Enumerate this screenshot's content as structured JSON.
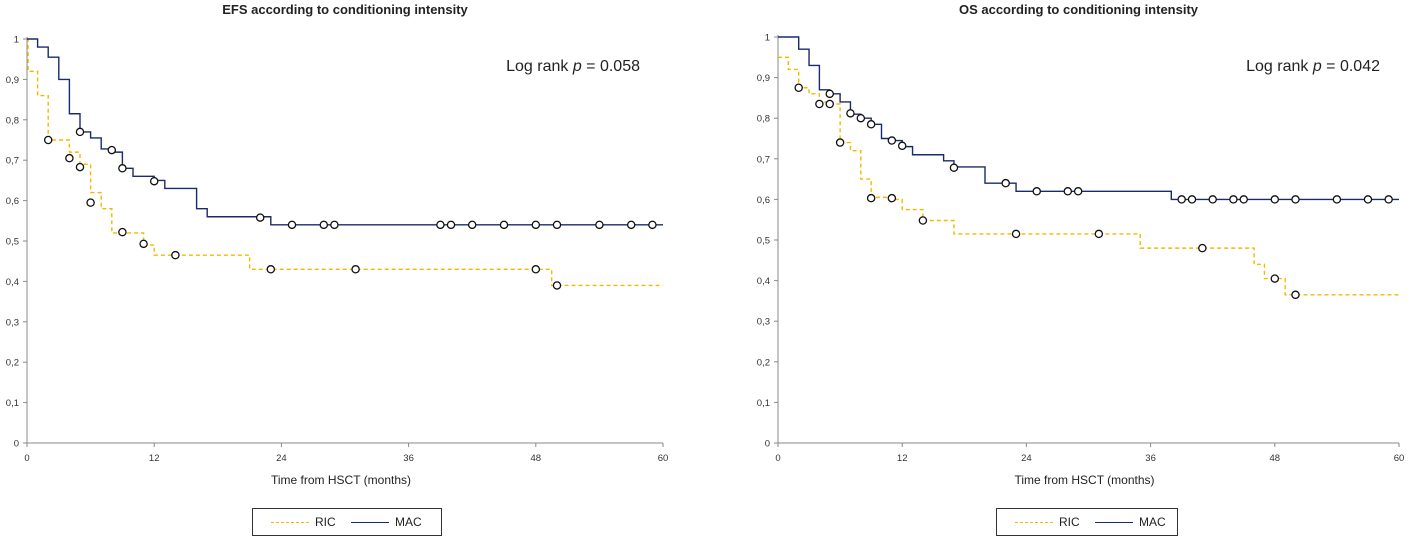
{
  "chart_data": [
    {
      "type": "line",
      "subtype": "kaplan-meier step",
      "title": "EFS  according to conditioning  intensity",
      "xlabel": "Time  from HSCT  (months)",
      "ylabel": "",
      "xlim": [
        0,
        60
      ],
      "ylim": [
        0,
        1
      ],
      "xticks": [
        "0",
        "12",
        "24",
        "36",
        "48",
        "60"
      ],
      "yticks": [
        "0",
        "0,1",
        "0,2",
        "0,3",
        "0,4",
        "0,5",
        "0,6",
        "0,7",
        "0,8",
        "0,9",
        "1"
      ],
      "grid": false,
      "legend_position": "bottom",
      "annotation": {
        "prefix": "Log rank ",
        "p": "p",
        "suffix": " = 0.058"
      },
      "series": [
        {
          "name": "RIC",
          "color": "#f5b800",
          "style": "dashed",
          "steps": [
            [
              0,
              1
            ],
            [
              0.1,
              0.92
            ],
            [
              1,
              0.86
            ],
            [
              2,
              0.75
            ],
            [
              4,
              0.72
            ],
            [
              5,
              0.69
            ],
            [
              6,
              0.62
            ],
            [
              7,
              0.58
            ],
            [
              8,
              0.52
            ],
            [
              11,
              0.49
            ],
            [
              12,
              0.465
            ],
            [
              21,
              0.43
            ],
            [
              48,
              0.43
            ],
            [
              49.5,
              0.39
            ],
            [
              60,
              0.39
            ]
          ],
          "censored": [
            [
              2,
              0.75
            ],
            [
              4,
              0.705
            ],
            [
              5,
              0.683
            ],
            [
              6,
              0.595
            ],
            [
              9,
              0.522
            ],
            [
              11,
              0.493
            ],
            [
              14,
              0.465
            ],
            [
              23,
              0.43
            ],
            [
              31,
              0.43
            ],
            [
              48,
              0.43
            ],
            [
              50,
              0.39
            ]
          ]
        },
        {
          "name": "MAC",
          "color": "#1b2a6b",
          "style": "solid",
          "steps": [
            [
              0,
              1
            ],
            [
              1,
              0.98
            ],
            [
              2,
              0.955
            ],
            [
              3,
              0.9
            ],
            [
              4,
              0.815
            ],
            [
              5,
              0.77
            ],
            [
              6,
              0.755
            ],
            [
              7,
              0.728
            ],
            [
              8,
              0.72
            ],
            [
              9,
              0.68
            ],
            [
              10,
              0.66
            ],
            [
              12,
              0.65
            ],
            [
              13,
              0.63
            ],
            [
              16,
              0.58
            ],
            [
              17,
              0.56
            ],
            [
              22,
              0.56
            ],
            [
              23,
              0.54
            ],
            [
              60,
              0.54
            ]
          ],
          "censored": [
            [
              5,
              0.77
            ],
            [
              8,
              0.725
            ],
            [
              9,
              0.68
            ],
            [
              12,
              0.648
            ],
            [
              22,
              0.558
            ],
            [
              25,
              0.54
            ],
            [
              28,
              0.54
            ],
            [
              29,
              0.54
            ],
            [
              39,
              0.54
            ],
            [
              40,
              0.54
            ],
            [
              42,
              0.54
            ],
            [
              45,
              0.54
            ],
            [
              48,
              0.54
            ],
            [
              50,
              0.54
            ],
            [
              54,
              0.54
            ],
            [
              57,
              0.54
            ],
            [
              59,
              0.54
            ]
          ]
        }
      ]
    },
    {
      "type": "line",
      "subtype": "kaplan-meier step",
      "title": "OS according to conditioning  intensity",
      "xlabel": "Time  from HSCT  (months)",
      "ylabel": "",
      "xlim": [
        0,
        60
      ],
      "ylim": [
        0,
        1
      ],
      "xticks": [
        "0",
        "12",
        "24",
        "36",
        "48",
        "60"
      ],
      "yticks": [
        "0",
        "0,1",
        "0,2",
        "0,3",
        "0,4",
        "0,5",
        "0,6",
        "0,7",
        "0,8",
        "0,9",
        "1"
      ],
      "grid": false,
      "legend_position": "bottom",
      "annotation": {
        "prefix": "Log rank  ",
        "p": "p",
        "suffix": " = 0.042"
      },
      "series": [
        {
          "name": "RIC",
          "color": "#f5b800",
          "style": "dashed",
          "steps": [
            [
              0,
              0.95
            ],
            [
              1,
              0.92
            ],
            [
              2,
              0.875
            ],
            [
              3,
              0.86
            ],
            [
              4,
              0.84
            ],
            [
              5,
              0.835
            ],
            [
              6,
              0.74
            ],
            [
              7,
              0.72
            ],
            [
              8,
              0.65
            ],
            [
              9,
              0.605
            ],
            [
              11,
              0.6
            ],
            [
              12,
              0.575
            ],
            [
              14,
              0.548
            ],
            [
              17,
              0.515
            ],
            [
              35,
              0.48
            ],
            [
              46,
              0.44
            ],
            [
              47,
              0.405
            ],
            [
              49,
              0.365
            ],
            [
              60,
              0.365
            ]
          ],
          "censored": [
            [
              2,
              0.875
            ],
            [
              4,
              0.835
            ],
            [
              5,
              0.835
            ],
            [
              6,
              0.74
            ],
            [
              9,
              0.603
            ],
            [
              11,
              0.603
            ],
            [
              14,
              0.548
            ],
            [
              23,
              0.515
            ],
            [
              31,
              0.515
            ],
            [
              41,
              0.48
            ],
            [
              48,
              0.405
            ],
            [
              50,
              0.365
            ]
          ]
        },
        {
          "name": "MAC",
          "color": "#1b2a6b",
          "style": "solid",
          "steps": [
            [
              0,
              1
            ],
            [
              2,
              0.97
            ],
            [
              3,
              0.93
            ],
            [
              4,
              0.87
            ],
            [
              5,
              0.86
            ],
            [
              6,
              0.84
            ],
            [
              7,
              0.81
            ],
            [
              8,
              0.8
            ],
            [
              9,
              0.785
            ],
            [
              10,
              0.75
            ],
            [
              11,
              0.745
            ],
            [
              12,
              0.73
            ],
            [
              13,
              0.71
            ],
            [
              16,
              0.695
            ],
            [
              17,
              0.68
            ],
            [
              20,
              0.64
            ],
            [
              22,
              0.64
            ],
            [
              23,
              0.62
            ],
            [
              38,
              0.6
            ],
            [
              60,
              0.6
            ]
          ],
          "censored": [
            [
              5,
              0.86
            ],
            [
              7,
              0.812
            ],
            [
              8,
              0.8
            ],
            [
              9,
              0.785
            ],
            [
              11,
              0.745
            ],
            [
              12,
              0.732
            ],
            [
              17,
              0.678
            ],
            [
              22,
              0.64
            ],
            [
              25,
              0.62
            ],
            [
              28,
              0.62
            ],
            [
              29,
              0.62
            ],
            [
              39,
              0.6
            ],
            [
              40,
              0.6
            ],
            [
              42,
              0.6
            ],
            [
              44,
              0.6
            ],
            [
              45,
              0.6
            ],
            [
              48,
              0.6
            ],
            [
              50,
              0.6
            ],
            [
              54,
              0.6
            ],
            [
              57,
              0.6
            ],
            [
              59,
              0.6
            ]
          ]
        }
      ]
    }
  ]
}
